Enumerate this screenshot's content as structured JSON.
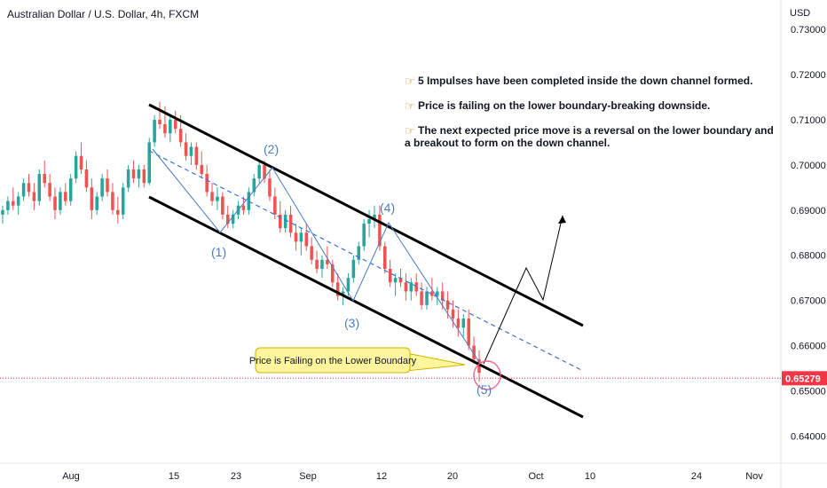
{
  "header": {
    "title": "Australian Dollar / U.S. Dollar, 4h, FXCM",
    "currency": "USD"
  },
  "chart_data": {
    "type": "candlestick",
    "title": "Australian Dollar / U.S. Dollar, 4h, FXCM",
    "ylim": [
      0.634,
      0.7365
    ],
    "y_ticks": [
      "0.73000",
      "0.72000",
      "0.71000",
      "0.70000",
      "0.69000",
      "0.68000",
      "0.67000",
      "0.66000",
      "0.65000",
      "0.64000"
    ],
    "x_ticks": [
      "Aug",
      "15",
      "23",
      "Sep",
      "12",
      "20",
      "Oct",
      "10",
      "24",
      "Nov"
    ],
    "current_price": "0.65279",
    "series": [
      {
        "values": [
          [
            0.689,
            0.691,
            0.687,
            0.69
          ],
          [
            0.69,
            0.693,
            0.689,
            0.692
          ],
          [
            0.692,
            0.695,
            0.69,
            0.691
          ],
          [
            0.691,
            0.694,
            0.689,
            0.693
          ],
          [
            0.693,
            0.697,
            0.692,
            0.696
          ],
          [
            0.696,
            0.698,
            0.693,
            0.694
          ],
          [
            0.694,
            0.696,
            0.69,
            0.692
          ],
          [
            0.692,
            0.699,
            0.691,
            0.698
          ],
          [
            0.698,
            0.701,
            0.695,
            0.696
          ],
          [
            0.696,
            0.698,
            0.692,
            0.693
          ],
          [
            0.693,
            0.695,
            0.688,
            0.69
          ],
          [
            0.69,
            0.695,
            0.689,
            0.694
          ],
          [
            0.694,
            0.696,
            0.691,
            0.692
          ],
          [
            0.692,
            0.698,
            0.691,
            0.697
          ],
          [
            0.697,
            0.703,
            0.696,
            0.702
          ],
          [
            0.702,
            0.705,
            0.698,
            0.699
          ],
          [
            0.699,
            0.701,
            0.694,
            0.695
          ],
          [
            0.695,
            0.697,
            0.688,
            0.69
          ],
          [
            0.69,
            0.694,
            0.689,
            0.693
          ],
          [
            0.693,
            0.698,
            0.692,
            0.697
          ],
          [
            0.697,
            0.699,
            0.693,
            0.694
          ],
          [
            0.694,
            0.696,
            0.689,
            0.69
          ],
          [
            0.69,
            0.693,
            0.687,
            0.689
          ],
          [
            0.689,
            0.696,
            0.688,
            0.695
          ],
          [
            0.695,
            0.7,
            0.694,
            0.699
          ],
          [
            0.699,
            0.701,
            0.696,
            0.697
          ],
          [
            0.697,
            0.7,
            0.695,
            0.699
          ],
          [
            0.699,
            0.7,
            0.695,
            0.696
          ],
          [
            0.696,
            0.706,
            0.6955,
            0.705
          ],
          [
            0.705,
            0.711,
            0.704,
            0.71
          ],
          [
            0.71,
            0.714,
            0.708,
            0.709
          ],
          [
            0.709,
            0.713,
            0.706,
            0.707
          ],
          [
            0.707,
            0.711,
            0.705,
            0.71
          ],
          [
            0.71,
            0.712,
            0.707,
            0.708
          ],
          [
            0.708,
            0.711,
            0.704,
            0.705
          ],
          [
            0.705,
            0.707,
            0.701,
            0.702
          ],
          [
            0.702,
            0.705,
            0.7,
            0.704
          ],
          [
            0.704,
            0.705,
            0.699,
            0.7
          ],
          [
            0.7,
            0.703,
            0.697,
            0.698
          ],
          [
            0.698,
            0.7,
            0.693,
            0.694
          ],
          [
            0.694,
            0.696,
            0.691,
            0.692
          ],
          [
            0.692,
            0.695,
            0.69,
            0.693
          ],
          [
            0.693,
            0.694,
            0.688,
            0.689
          ],
          [
            0.689,
            0.691,
            0.686,
            0.687
          ],
          [
            0.687,
            0.69,
            0.686,
            0.689
          ],
          [
            0.689,
            0.692,
            0.688,
            0.691
          ],
          [
            0.691,
            0.693,
            0.689,
            0.69
          ],
          [
            0.69,
            0.695,
            0.689,
            0.694
          ],
          [
            0.694,
            0.698,
            0.693,
            0.697
          ],
          [
            0.697,
            0.701,
            0.696,
            0.7
          ],
          [
            0.7,
            0.701,
            0.696,
            0.697
          ],
          [
            0.697,
            0.699,
            0.692,
            0.693
          ],
          [
            0.693,
            0.695,
            0.688,
            0.689
          ],
          [
            0.689,
            0.692,
            0.685,
            0.686
          ],
          [
            0.686,
            0.69,
            0.685,
            0.689
          ],
          [
            0.689,
            0.691,
            0.684,
            0.685
          ],
          [
            0.685,
            0.687,
            0.681,
            0.683
          ],
          [
            0.683,
            0.686,
            0.68,
            0.685
          ],
          [
            0.685,
            0.687,
            0.681,
            0.682
          ],
          [
            0.682,
            0.684,
            0.678,
            0.679
          ],
          [
            0.679,
            0.681,
            0.676,
            0.677
          ],
          [
            0.677,
            0.68,
            0.675,
            0.679
          ],
          [
            0.679,
            0.682,
            0.677,
            0.678
          ],
          [
            0.678,
            0.679,
            0.673,
            0.674
          ],
          [
            0.674,
            0.676,
            0.67,
            0.671
          ],
          [
            0.671,
            0.673,
            0.669,
            0.672
          ],
          [
            0.672,
            0.676,
            0.671,
            0.675
          ],
          [
            0.675,
            0.68,
            0.674,
            0.679
          ],
          [
            0.679,
            0.683,
            0.678,
            0.682
          ],
          [
            0.682,
            0.688,
            0.681,
            0.687
          ],
          [
            0.687,
            0.69,
            0.684,
            0.688
          ],
          [
            0.688,
            0.691,
            0.686,
            0.689
          ],
          [
            0.689,
            0.691,
            0.681,
            0.682
          ],
          [
            0.682,
            0.683,
            0.676,
            0.677
          ],
          [
            0.677,
            0.679,
            0.673,
            0.674
          ],
          [
            0.674,
            0.676,
            0.671,
            0.675
          ],
          [
            0.675,
            0.677,
            0.673,
            0.674
          ],
          [
            0.674,
            0.676,
            0.67,
            0.672
          ],
          [
            0.672,
            0.675,
            0.67,
            0.674
          ],
          [
            0.674,
            0.676,
            0.671,
            0.672
          ],
          [
            0.672,
            0.674,
            0.668,
            0.669
          ],
          [
            0.669,
            0.673,
            0.668,
            0.672
          ],
          [
            0.672,
            0.675,
            0.67,
            0.671
          ],
          [
            0.671,
            0.673,
            0.669,
            0.672
          ],
          [
            0.672,
            0.674,
            0.668,
            0.67
          ],
          [
            0.67,
            0.672,
            0.666,
            0.668
          ],
          [
            0.668,
            0.67,
            0.664,
            0.666
          ],
          [
            0.666,
            0.668,
            0.662,
            0.664
          ],
          [
            0.664,
            0.667,
            0.662,
            0.666
          ],
          [
            0.666,
            0.668,
            0.659,
            0.66
          ],
          [
            0.66,
            0.662,
            0.656,
            0.657
          ],
          [
            0.657,
            0.659,
            0.652,
            0.654
          ]
        ]
      }
    ]
  },
  "annotations": {
    "notes": [
      "5 Impulses have been completed inside the down channel formed.",
      "Price is failing on the lower boundary-breaking downside.",
      "The next expected price move is a reversal on the lower boundary and",
      "a breakout to form on the down channel."
    ],
    "callout": "Price is Failing on the Lower Boundary",
    "waves": [
      "(1)",
      "(2)",
      "(3)",
      "(4)",
      "(5)"
    ]
  },
  "colors": {
    "up": "#26a69a",
    "down": "#ef5350",
    "channel": "#000000",
    "midline": "#3b6fd6",
    "wave": "#4a7cc4",
    "price_line": "#f23645",
    "callout_bg": "#fff59d"
  }
}
